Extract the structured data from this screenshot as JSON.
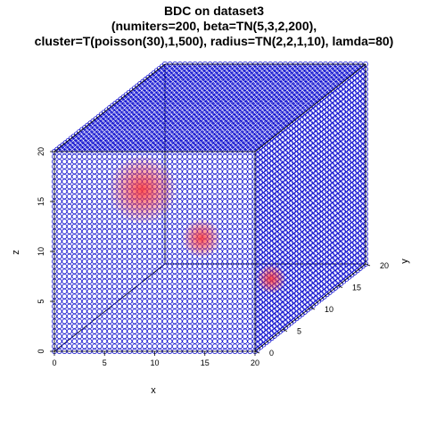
{
  "chart_data": {
    "type": "scatter",
    "subtype": "3d-scatter",
    "title_lines": [
      "BDC on dataset3",
      "(numiters=200, beta=TN(5,3,2,200),",
      "cluster=T(poisson(30),1,500), radius=TN(2,2,1,10), lamda=80)"
    ],
    "xlabel": "x",
    "ylabel": "y",
    "zlabel": "z",
    "xlim": [
      0,
      20
    ],
    "ylim": [
      0,
      20
    ],
    "zlim": [
      0,
      20
    ],
    "x_ticks": [
      "0",
      "5",
      "10",
      "15",
      "20"
    ],
    "y_ticks": [
      "0",
      "5",
      "10",
      "15",
      "20"
    ],
    "z_ticks": [
      "0",
      "5",
      "10",
      "15",
      "20"
    ],
    "grid": false,
    "box": true,
    "point_style": "open-circle",
    "colors": {
      "points": "#0000cc",
      "clusters": "#ff3333",
      "axes": "#000000"
    },
    "series": [
      {
        "role": "background-grid",
        "x": {
          "from": 0,
          "to": 20,
          "step": 0.5
        },
        "y": {
          "from": 0,
          "to": 20,
          "step": 0.5
        },
        "z": {
          "from": 0,
          "to": 20,
          "step": 0.5
        }
      },
      {
        "role": "cluster-points",
        "points": [
          {
            "x": 6,
            "y": 5,
            "z": 14,
            "radius": 3.5
          },
          {
            "x": 13,
            "y": 3,
            "z": 10,
            "radius": 2
          },
          {
            "x": 15,
            "y": 12,
            "z": 2,
            "radius": 1.5
          }
        ]
      }
    ]
  }
}
